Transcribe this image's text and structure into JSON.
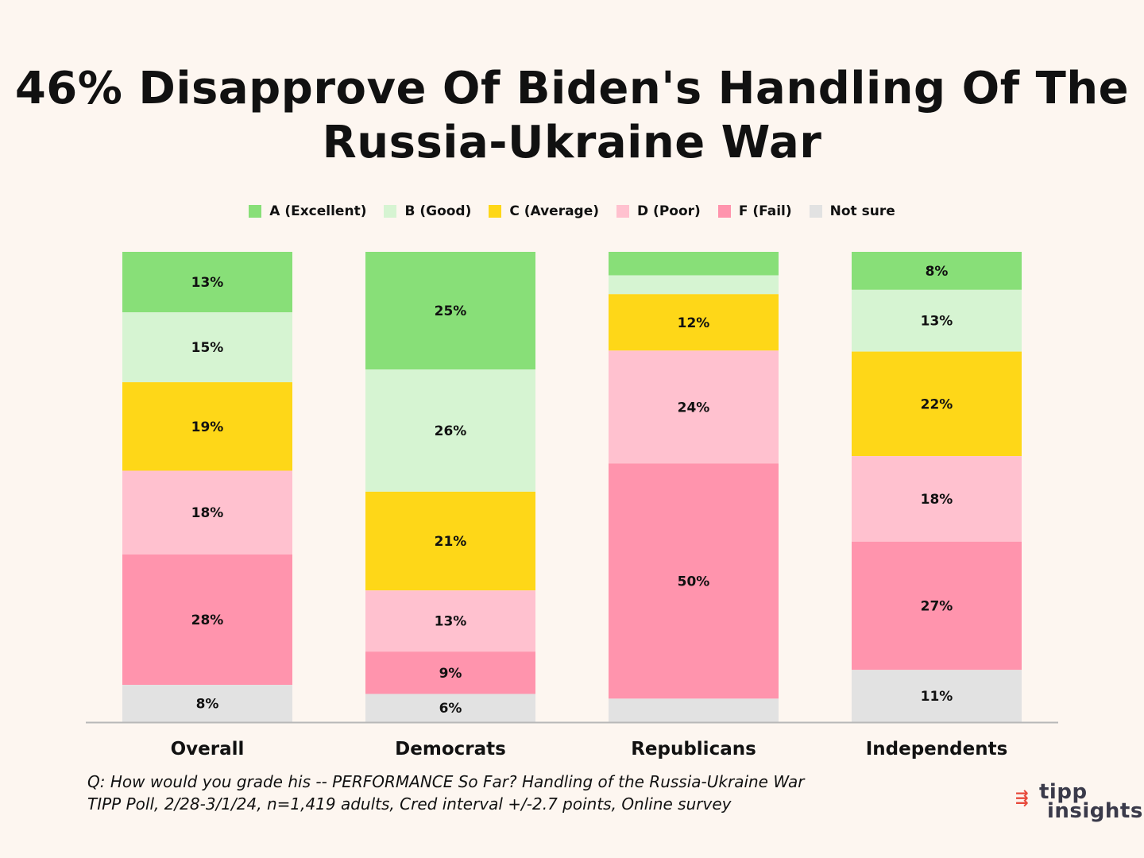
{
  "title_lines": [
    "46% Disapprove Of Biden's Handling Of The",
    "Russia-Ukraine War"
  ],
  "chart_data": {
    "type": "bar",
    "stacked": true,
    "categories": [
      "Overall",
      "Democrats",
      "Republicans",
      "Independents"
    ],
    "series": [
      {
        "name": "A (Excellent)",
        "color": "#88df78",
        "values": [
          13,
          25,
          5,
          8
        ]
      },
      {
        "name": "B (Good)",
        "color": "#d6f4d2",
        "values": [
          15,
          26,
          4,
          13
        ]
      },
      {
        "name": "C (Average)",
        "color": "#fed718",
        "values": [
          19,
          21,
          12,
          22
        ]
      },
      {
        "name": "D (Poor)",
        "color": "#ffc1cf",
        "values": [
          18,
          13,
          24,
          18
        ]
      },
      {
        "name": "F (Fail)",
        "color": "#ff94ad",
        "values": [
          28,
          9,
          50,
          27
        ]
      },
      {
        "name": "Not sure",
        "color": "#e2e2e2",
        "values": [
          8,
          6,
          5,
          11
        ]
      }
    ],
    "data_labels": [
      [
        "13%",
        "25%",
        "",
        "8%"
      ],
      [
        "15%",
        "26%",
        "",
        "13%"
      ],
      [
        "19%",
        "21%",
        "12%",
        "22%"
      ],
      [
        "18%",
        "13%",
        "24%",
        "18%"
      ],
      [
        "28%",
        "9%",
        "50%",
        "27%"
      ],
      [
        "8%",
        "6%",
        "",
        "11%"
      ]
    ],
    "legend_position": "top-center",
    "grid": false
  },
  "footer": {
    "line1": "Q:  How would you grade his -- PERFORMANCE So Far?  Handling of the Russia-Ukraine War",
    "line2": "TIPP Poll, 2/28-3/1/24, n=1,419 adults, Cred interval +/-2.7 points, Online survey"
  },
  "logo": {
    "arrow": "⇶",
    "line1": "tipp",
    "line2": "insights"
  }
}
